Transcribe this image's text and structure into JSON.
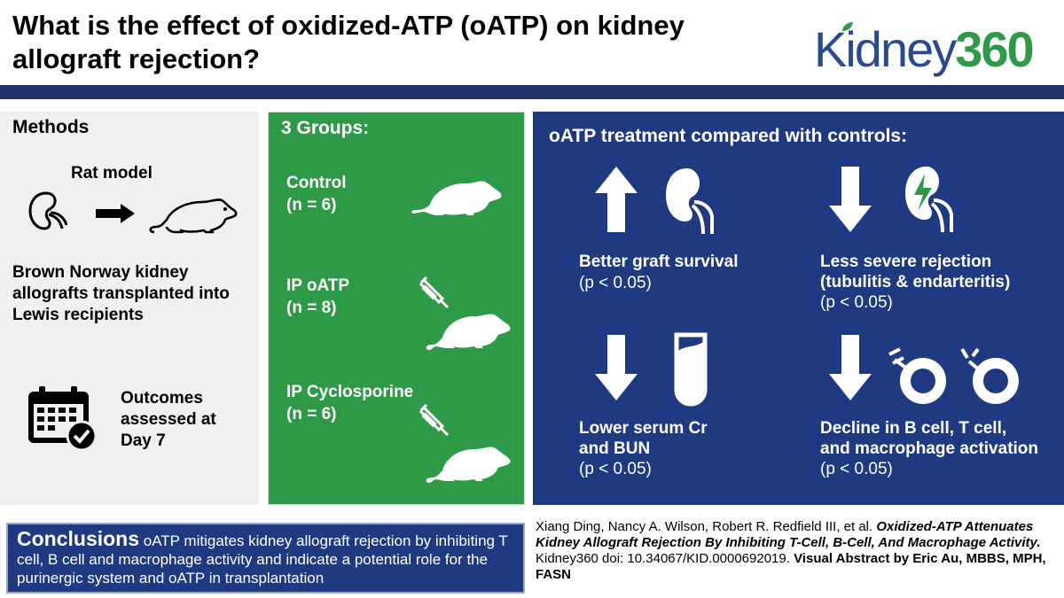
{
  "header": {
    "title": "What is the effect of oxidized-ATP (oATP) on kidney allograft rejection?",
    "logo_prefix": "Kidney",
    "logo_suffix": "360",
    "colors": {
      "bar": "#1f3165",
      "logo_blue": "#2a4a8f",
      "logo_green": "#2e9a48"
    }
  },
  "methods": {
    "title": "Methods",
    "model_label": "Rat model",
    "icons": [
      "kidney-outline-icon",
      "arrow-right-icon",
      "rat-outline-icon",
      "calendar-check-icon"
    ],
    "description": "Brown Norway kidney allografts transplanted into Lewis recipients",
    "outcomes_line1": "Outcomes",
    "outcomes_line2": "assessed at",
    "outcomes_line3": "Day 7",
    "colors": {
      "background": "#f0f0f0"
    }
  },
  "groups": {
    "title": "3 Groups:",
    "items": [
      {
        "name": "Control",
        "n": "(n = 6)",
        "icon": "rat-icon"
      },
      {
        "name": "IP oATP",
        "n": "(n = 8)",
        "icon": "rat-injection-icon"
      },
      {
        "name": "IP Cyclosporine",
        "n": "(n = 6)",
        "icon": "rat-injection-icon"
      }
    ],
    "colors": {
      "background": "#2e9a48"
    }
  },
  "results": {
    "title": "oATP treatment compared with controls:",
    "items": [
      {
        "line1": "Better graft survival",
        "line2": "",
        "p": "(p < 0.05)",
        "direction": "up",
        "icon": "kidney-icon"
      },
      {
        "line1": "Less severe rejection",
        "line2": "(tubulitis & endarteritis)",
        "p": "(p < 0.05)",
        "direction": "down",
        "icon": "kidney-lightning-icon"
      },
      {
        "line1": "Lower serum Cr",
        "line2": "and BUN",
        "p": "(p < 0.05)",
        "direction": "down",
        "icon": "test-tube-icon"
      },
      {
        "line1": "Decline in B cell, T cell,",
        "line2": "and macrophage activation",
        "p": "(p < 0.05)",
        "direction": "down",
        "icon": "immune-cells-icon"
      }
    ],
    "colors": {
      "background": "#1f3a80"
    }
  },
  "conclusion": {
    "heading": "Conclusions",
    "text": "oATP mitigates kidney allograft rejection by inhibiting T cell, B cell and macrophage activity and indicate a potential role for the purinergic system and oATP in transplantation"
  },
  "citation": {
    "authors": "Xiang Ding, Nancy A. Wilson, Robert R. Redfield III, et al.",
    "article_title": "Oxidized-ATP Attenuates Kidney Allograft Rejection By Inhibiting T-Cell, B-Cell, And Macrophage Activity.",
    "journal_doi": "Kidney360 doi: 10.34067/KID.0000692019.",
    "visual_abstract": "Visual Abstract by Eric Au, MBBS, MPH, FASN"
  }
}
